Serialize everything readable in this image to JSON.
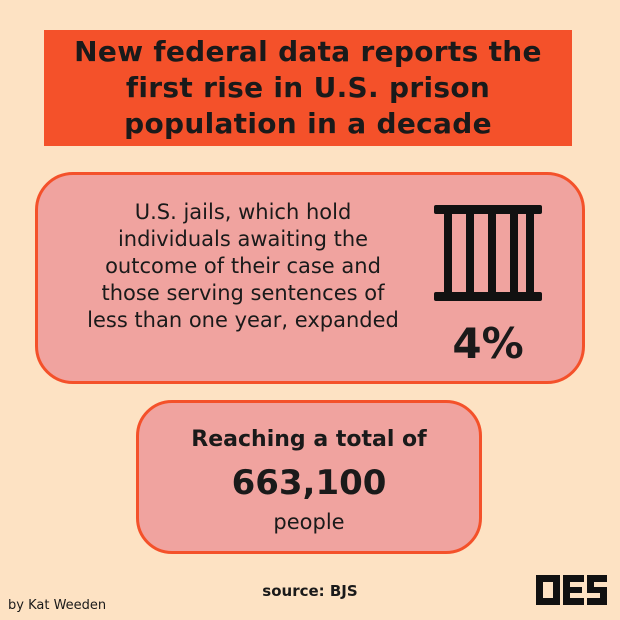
{
  "headline": "New federal data reports the first rise in U.S. prison population in a decade",
  "jails_card": {
    "text": "U.S. jails, which hold individuals awaiting the outcome of their case and those serving sentences of less than one year, expanded",
    "icon": "jail-bars-icon",
    "percent": "4%"
  },
  "total_card": {
    "intro": "Reaching a total of",
    "total": "663,100",
    "unit": "people"
  },
  "source": "source: BJS",
  "byline": "by Kat Weeden",
  "logo": "publication-logo-icon",
  "colors": {
    "background": "#fde2c3",
    "accent": "#f4512a",
    "card_fill": "#f0a39f",
    "text": "#1a1a1a"
  }
}
